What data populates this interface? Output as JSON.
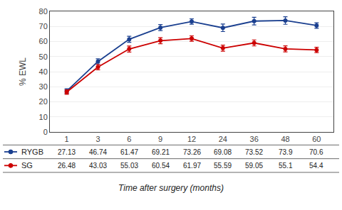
{
  "chart_data": {
    "type": "line",
    "categories": [
      "1",
      "3",
      "6",
      "9",
      "12",
      "24",
      "36",
      "48",
      "60"
    ],
    "series": [
      {
        "name": "RYGB",
        "color": "#1a3f8f",
        "values": [
          27.13,
          46.74,
          61.47,
          69.21,
          73.26,
          69.08,
          73.52,
          73.9,
          70.6
        ],
        "errors": [
          1.5,
          1.8,
          2.0,
          2.0,
          1.8,
          2.5,
          2.5,
          2.5,
          1.8
        ]
      },
      {
        "name": "SG",
        "color": "#cc0000",
        "values": [
          26.48,
          43.03,
          55.03,
          60.54,
          61.97,
          55.59,
          59.05,
          55.1,
          54.4
        ],
        "errors": [
          1.5,
          1.8,
          2.0,
          2.0,
          1.8,
          2.0,
          2.0,
          2.0,
          1.8
        ]
      }
    ],
    "ylabel": "% EWL",
    "xlabel": "Time after surgery (months)",
    "ylim": [
      0,
      80
    ],
    "yticks": [
      0,
      10,
      20,
      30,
      40,
      50,
      60,
      70,
      80
    ],
    "grid": true,
    "marker": "circle",
    "data_labels": true
  }
}
